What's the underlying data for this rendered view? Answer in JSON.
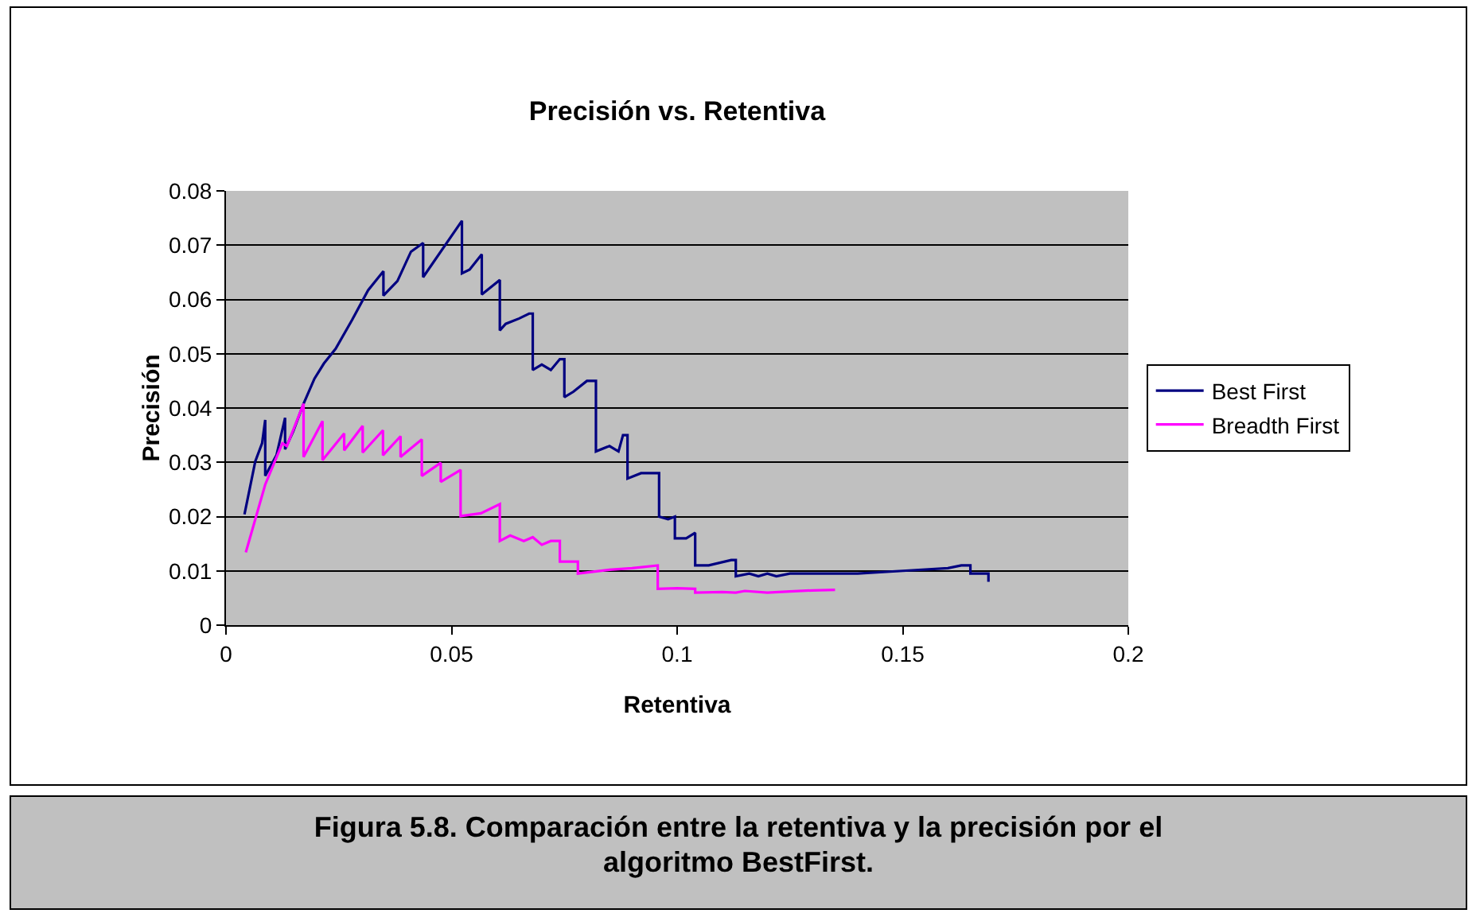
{
  "chart_data": {
    "type": "line",
    "title": "Precisión vs. Retentiva",
    "xlabel": "Retentiva",
    "ylabel": "Precisión",
    "xlim": [
      0,
      0.2
    ],
    "xticks": [
      0,
      0.05,
      0.1,
      0.15,
      0.2
    ],
    "ylim": [
      0,
      0.08
    ],
    "yticks": [
      0,
      0.01,
      0.02,
      0.03,
      0.04,
      0.05,
      0.06,
      0.07,
      0.08
    ],
    "grid": "y",
    "legend": "right",
    "marker": "none",
    "line_style": "solid",
    "annotations": [
      "Figura 5.8. Comparación entre la retentiva y la precisión por el algoritmo BestFirst."
    ],
    "series": [
      {
        "name": "Best First",
        "color": "#000080",
        "x": [
          0.0041,
          0.0065,
          0.008,
          0.0087,
          0.0087,
          0.0112,
          0.0131,
          0.0131,
          0.0149,
          0.0172,
          0.0196,
          0.0217,
          0.0243,
          0.028,
          0.0315,
          0.0349,
          0.0349,
          0.038,
          0.041,
          0.0437,
          0.0437,
          0.0523,
          0.0523,
          0.054,
          0.0567,
          0.0567,
          0.0607,
          0.0607,
          0.062,
          0.065,
          0.0672,
          0.068,
          0.068,
          0.07,
          0.072,
          0.074,
          0.075,
          0.075,
          0.077,
          0.08,
          0.082,
          0.082,
          0.085,
          0.087,
          0.088,
          0.089,
          0.089,
          0.092,
          0.094,
          0.096,
          0.096,
          0.098,
          0.0995,
          0.0995,
          0.102,
          0.104,
          0.104,
          0.107,
          0.112,
          0.113,
          0.113,
          0.116,
          0.118,
          0.12,
          0.122,
          0.125,
          0.13,
          0.14,
          0.15,
          0.16,
          0.163,
          0.165,
          0.165,
          0.169,
          0.169
        ],
        "values": [
          0.0204,
          0.0302,
          0.0335,
          0.0378,
          0.0275,
          0.0313,
          0.0382,
          0.0324,
          0.0357,
          0.0408,
          0.0454,
          0.0482,
          0.0509,
          0.0563,
          0.0617,
          0.0652,
          0.0607,
          0.0634,
          0.0688,
          0.0704,
          0.0641,
          0.0745,
          0.0648,
          0.0655,
          0.0683,
          0.0609,
          0.0636,
          0.0543,
          0.0555,
          0.0565,
          0.0574,
          0.0574,
          0.047,
          0.048,
          0.047,
          0.049,
          0.049,
          0.042,
          0.043,
          0.045,
          0.045,
          0.032,
          0.033,
          0.032,
          0.035,
          0.035,
          0.027,
          0.028,
          0.028,
          0.028,
          0.02,
          0.0195,
          0.02,
          0.016,
          0.016,
          0.017,
          0.011,
          0.011,
          0.012,
          0.012,
          0.009,
          0.0095,
          0.009,
          0.0095,
          0.009,
          0.0095,
          0.0095,
          0.0095,
          0.01,
          0.0105,
          0.011,
          0.011,
          0.0095,
          0.0095,
          0.008
        ]
      },
      {
        "name": "Breadth First",
        "color": "#ff00ff",
        "x": [
          0.0044,
          0.0087,
          0.0125,
          0.0135,
          0.0172,
          0.0172,
          0.0214,
          0.0214,
          0.0262,
          0.0262,
          0.0303,
          0.0303,
          0.0348,
          0.0348,
          0.0387,
          0.0387,
          0.0434,
          0.0434,
          0.0476,
          0.0476,
          0.052,
          0.052,
          0.0565,
          0.0607,
          0.0607,
          0.063,
          0.066,
          0.068,
          0.07,
          0.072,
          0.074,
          0.074,
          0.078,
          0.078,
          0.085,
          0.09,
          0.0957,
          0.0957,
          0.1,
          0.104,
          0.104,
          0.11,
          0.113,
          0.115,
          0.12,
          0.125,
          0.13,
          0.135
        ],
        "values": [
          0.0134,
          0.0259,
          0.0335,
          0.033,
          0.0408,
          0.031,
          0.0376,
          0.0304,
          0.0353,
          0.0322,
          0.0367,
          0.0318,
          0.0359,
          0.0313,
          0.0348,
          0.031,
          0.0342,
          0.0275,
          0.0299,
          0.0264,
          0.0286,
          0.0201,
          0.0206,
          0.0223,
          0.0155,
          0.0165,
          0.0155,
          0.0162,
          0.0148,
          0.0155,
          0.0155,
          0.0117,
          0.0117,
          0.0095,
          0.0102,
          0.0105,
          0.011,
          0.0067,
          0.0068,
          0.0067,
          0.006,
          0.0061,
          0.006,
          0.0063,
          0.006,
          0.0062,
          0.0064,
          0.0065
        ]
      }
    ]
  }
}
